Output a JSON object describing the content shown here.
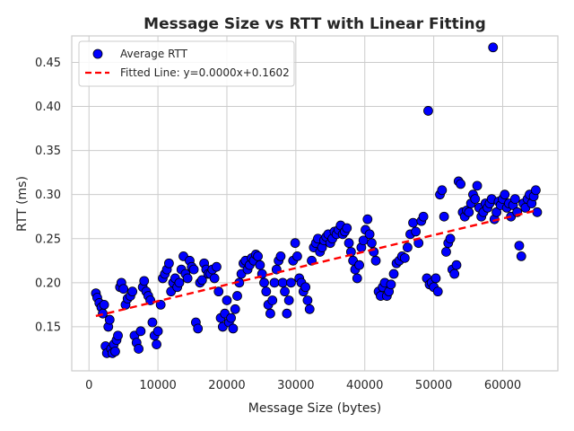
{
  "chart_data": {
    "type": "scatter",
    "title": "Message Size vs RTT with Linear Fitting",
    "xlabel": "Message Size (bytes)",
    "ylabel": "RTT (ms)",
    "xlim": [
      -2500,
      68000
    ],
    "ylim": [
      0.1,
      0.48
    ],
    "xticks": [
      0,
      10000,
      20000,
      30000,
      40000,
      50000,
      60000
    ],
    "yticks": [
      0.15,
      0.2,
      0.25,
      0.3,
      0.35,
      0.4,
      0.45
    ],
    "grid": true,
    "legend_position": "top-left",
    "colors": {
      "points": "#0000ff",
      "point_edge": "#000000",
      "fit_line": "#ff0000"
    },
    "series": [
      {
        "name": "Average RTT",
        "kind": "scatter",
        "points": [
          [
            1000,
            0.188
          ],
          [
            1200,
            0.183
          ],
          [
            1500,
            0.177
          ],
          [
            1800,
            0.172
          ],
          [
            2000,
            0.165
          ],
          [
            2200,
            0.175
          ],
          [
            2400,
            0.128
          ],
          [
            2600,
            0.12
          ],
          [
            2800,
            0.15
          ],
          [
            3000,
            0.158
          ],
          [
            3200,
            0.125
          ],
          [
            3400,
            0.12
          ],
          [
            3600,
            0.13
          ],
          [
            3800,
            0.122
          ],
          [
            4000,
            0.135
          ],
          [
            4200,
            0.14
          ],
          [
            4500,
            0.195
          ],
          [
            4700,
            0.2
          ],
          [
            5000,
            0.193
          ],
          [
            5300,
            0.175
          ],
          [
            5600,
            0.182
          ],
          [
            6000,
            0.185
          ],
          [
            6300,
            0.19
          ],
          [
            6600,
            0.14
          ],
          [
            6900,
            0.132
          ],
          [
            7200,
            0.125
          ],
          [
            7500,
            0.145
          ],
          [
            7800,
            0.195
          ],
          [
            8000,
            0.202
          ],
          [
            8300,
            0.19
          ],
          [
            8600,
            0.185
          ],
          [
            8900,
            0.18
          ],
          [
            9200,
            0.155
          ],
          [
            9500,
            0.14
          ],
          [
            9800,
            0.13
          ],
          [
            10000,
            0.145
          ],
          [
            10400,
            0.175
          ],
          [
            10700,
            0.205
          ],
          [
            11000,
            0.21
          ],
          [
            11300,
            0.215
          ],
          [
            11600,
            0.222
          ],
          [
            11900,
            0.19
          ],
          [
            12200,
            0.2
          ],
          [
            12500,
            0.205
          ],
          [
            12800,
            0.195
          ],
          [
            13100,
            0.2
          ],
          [
            13400,
            0.215
          ],
          [
            13700,
            0.23
          ],
          [
            14000,
            0.21
          ],
          [
            14300,
            0.205
          ],
          [
            14600,
            0.225
          ],
          [
            14900,
            0.218
          ],
          [
            15200,
            0.215
          ],
          [
            15500,
            0.155
          ],
          [
            15800,
            0.148
          ],
          [
            16100,
            0.2
          ],
          [
            16400,
            0.203
          ],
          [
            16700,
            0.222
          ],
          [
            17000,
            0.215
          ],
          [
            17300,
            0.21
          ],
          [
            17600,
            0.21
          ],
          [
            17900,
            0.215
          ],
          [
            18200,
            0.205
          ],
          [
            18500,
            0.218
          ],
          [
            18800,
            0.19
          ],
          [
            19100,
            0.16
          ],
          [
            19400,
            0.15
          ],
          [
            19700,
            0.165
          ],
          [
            20000,
            0.18
          ],
          [
            20300,
            0.155
          ],
          [
            20600,
            0.16
          ],
          [
            20900,
            0.148
          ],
          [
            21200,
            0.17
          ],
          [
            21500,
            0.185
          ],
          [
            21800,
            0.2
          ],
          [
            22100,
            0.21
          ],
          [
            22400,
            0.222
          ],
          [
            22700,
            0.225
          ],
          [
            23000,
            0.215
          ],
          [
            23300,
            0.22
          ],
          [
            23600,
            0.228
          ],
          [
            23900,
            0.225
          ],
          [
            24200,
            0.232
          ],
          [
            24500,
            0.23
          ],
          [
            24800,
            0.22
          ],
          [
            25100,
            0.21
          ],
          [
            25400,
            0.2
          ],
          [
            25700,
            0.19
          ],
          [
            26000,
            0.175
          ],
          [
            26300,
            0.165
          ],
          [
            26600,
            0.18
          ],
          [
            26900,
            0.2
          ],
          [
            27200,
            0.215
          ],
          [
            27500,
            0.225
          ],
          [
            27800,
            0.23
          ],
          [
            28100,
            0.2
          ],
          [
            28400,
            0.19
          ],
          [
            28700,
            0.165
          ],
          [
            29000,
            0.18
          ],
          [
            29300,
            0.2
          ],
          [
            29600,
            0.225
          ],
          [
            29900,
            0.245
          ],
          [
            30200,
            0.23
          ],
          [
            30500,
            0.205
          ],
          [
            30800,
            0.2
          ],
          [
            31100,
            0.19
          ],
          [
            31400,
            0.195
          ],
          [
            31700,
            0.18
          ],
          [
            32000,
            0.17
          ],
          [
            32300,
            0.225
          ],
          [
            32600,
            0.24
          ],
          [
            32900,
            0.245
          ],
          [
            33200,
            0.25
          ],
          [
            33500,
            0.235
          ],
          [
            33800,
            0.24
          ],
          [
            34100,
            0.248
          ],
          [
            34400,
            0.252
          ],
          [
            34700,
            0.255
          ],
          [
            35000,
            0.245
          ],
          [
            35300,
            0.25
          ],
          [
            35600,
            0.258
          ],
          [
            35900,
            0.255
          ],
          [
            36200,
            0.26
          ],
          [
            36500,
            0.265
          ],
          [
            36800,
            0.255
          ],
          [
            37100,
            0.258
          ],
          [
            37400,
            0.262
          ],
          [
            37700,
            0.245
          ],
          [
            38000,
            0.235
          ],
          [
            38300,
            0.225
          ],
          [
            38600,
            0.215
          ],
          [
            38900,
            0.205
          ],
          [
            39200,
            0.22
          ],
          [
            39500,
            0.24
          ],
          [
            39800,
            0.248
          ],
          [
            40100,
            0.26
          ],
          [
            40400,
            0.272
          ],
          [
            40700,
            0.255
          ],
          [
            41000,
            0.245
          ],
          [
            41300,
            0.235
          ],
          [
            41600,
            0.225
          ],
          [
            42000,
            0.19
          ],
          [
            42300,
            0.185
          ],
          [
            42600,
            0.195
          ],
          [
            42900,
            0.2
          ],
          [
            43200,
            0.185
          ],
          [
            43500,
            0.19
          ],
          [
            43800,
            0.198
          ],
          [
            44200,
            0.21
          ],
          [
            44600,
            0.222
          ],
          [
            45000,
            0.225
          ],
          [
            45400,
            0.23
          ],
          [
            45800,
            0.228
          ],
          [
            46200,
            0.24
          ],
          [
            46600,
            0.255
          ],
          [
            47000,
            0.268
          ],
          [
            47400,
            0.258
          ],
          [
            47800,
            0.245
          ],
          [
            48200,
            0.27
          ],
          [
            48500,
            0.275
          ],
          [
            49000,
            0.205
          ],
          [
            49200,
            0.395
          ],
          [
            49400,
            0.198
          ],
          [
            49700,
            0.2
          ],
          [
            50000,
            0.195
          ],
          [
            50300,
            0.205
          ],
          [
            50600,
            0.19
          ],
          [
            50900,
            0.3
          ],
          [
            51200,
            0.305
          ],
          [
            51500,
            0.275
          ],
          [
            51800,
            0.235
          ],
          [
            52100,
            0.245
          ],
          [
            52400,
            0.25
          ],
          [
            52700,
            0.215
          ],
          [
            53000,
            0.21
          ],
          [
            53300,
            0.22
          ],
          [
            53600,
            0.315
          ],
          [
            53900,
            0.312
          ],
          [
            54200,
            0.28
          ],
          [
            54500,
            0.275
          ],
          [
            54800,
            0.282
          ],
          [
            55100,
            0.28
          ],
          [
            55400,
            0.29
          ],
          [
            55700,
            0.3
          ],
          [
            56000,
            0.295
          ],
          [
            56300,
            0.31
          ],
          [
            56600,
            0.285
          ],
          [
            56900,
            0.275
          ],
          [
            57200,
            0.28
          ],
          [
            57500,
            0.29
          ],
          [
            57800,
            0.285
          ],
          [
            58100,
            0.29
          ],
          [
            58400,
            0.295
          ],
          [
            58600,
            0.467
          ],
          [
            58800,
            0.272
          ],
          [
            59100,
            0.28
          ],
          [
            59400,
            0.292
          ],
          [
            59700,
            0.288
          ],
          [
            60000,
            0.295
          ],
          [
            60300,
            0.3
          ],
          [
            60600,
            0.285
          ],
          [
            60900,
            0.29
          ],
          [
            61200,
            0.275
          ],
          [
            61500,
            0.288
          ],
          [
            61800,
            0.295
          ],
          [
            62100,
            0.28
          ],
          [
            62400,
            0.242
          ],
          [
            62700,
            0.23
          ],
          [
            63000,
            0.29
          ],
          [
            63300,
            0.285
          ],
          [
            63600,
            0.295
          ],
          [
            63900,
            0.3
          ],
          [
            64200,
            0.29
          ],
          [
            64500,
            0.298
          ],
          [
            64800,
            0.305
          ],
          [
            65000,
            0.28
          ]
        ]
      },
      {
        "name": "Fitted Line: y=0.0000x+0.1602",
        "kind": "line",
        "style": "dashed",
        "points": [
          [
            1000,
            0.1622
          ],
          [
            65000,
            0.2822
          ]
        ]
      }
    ]
  }
}
